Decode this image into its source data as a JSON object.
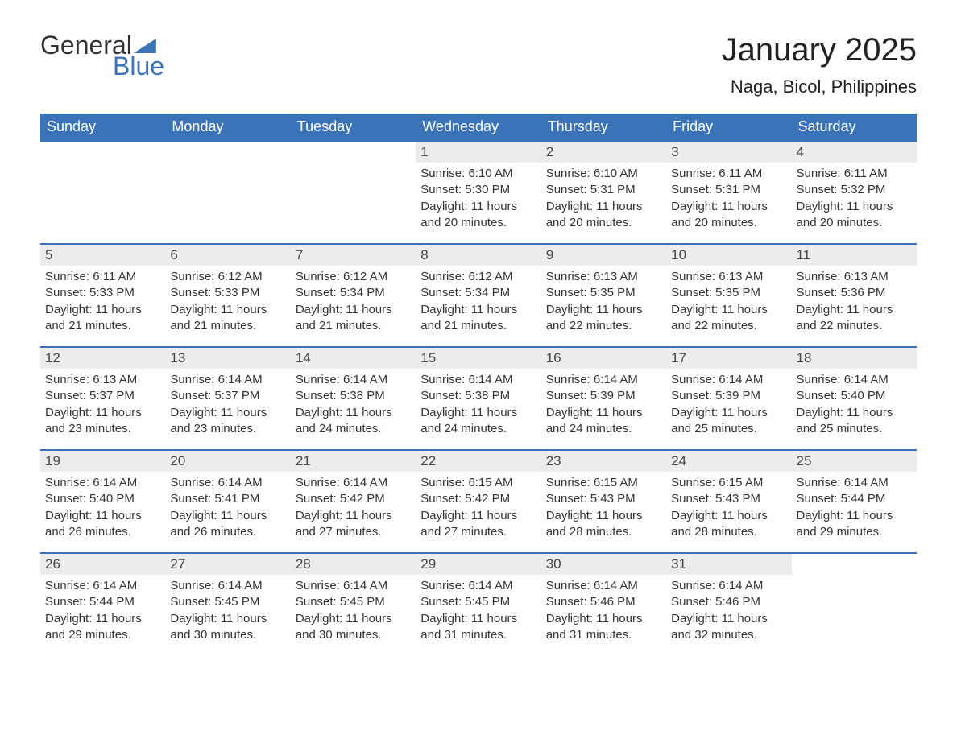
{
  "logo": {
    "text1": "General",
    "text2": "Blue"
  },
  "title": "January 2025",
  "location": "Naga, Bicol, Philippines",
  "colors": {
    "header_bg": "#3b73b9",
    "header_text": "#ffffff",
    "daynum_bg": "#ececec",
    "border": "#3b73b9",
    "body_text": "#333333"
  },
  "weekdays": [
    "Sunday",
    "Monday",
    "Tuesday",
    "Wednesday",
    "Thursday",
    "Friday",
    "Saturday"
  ],
  "weeks": [
    [
      {
        "n": "",
        "sunrise": "",
        "sunset": "",
        "daylight": ""
      },
      {
        "n": "",
        "sunrise": "",
        "sunset": "",
        "daylight": ""
      },
      {
        "n": "",
        "sunrise": "",
        "sunset": "",
        "daylight": ""
      },
      {
        "n": "1",
        "sunrise": "Sunrise: 6:10 AM",
        "sunset": "Sunset: 5:30 PM",
        "daylight": "Daylight: 11 hours and 20 minutes."
      },
      {
        "n": "2",
        "sunrise": "Sunrise: 6:10 AM",
        "sunset": "Sunset: 5:31 PM",
        "daylight": "Daylight: 11 hours and 20 minutes."
      },
      {
        "n": "3",
        "sunrise": "Sunrise: 6:11 AM",
        "sunset": "Sunset: 5:31 PM",
        "daylight": "Daylight: 11 hours and 20 minutes."
      },
      {
        "n": "4",
        "sunrise": "Sunrise: 6:11 AM",
        "sunset": "Sunset: 5:32 PM",
        "daylight": "Daylight: 11 hours and 20 minutes."
      }
    ],
    [
      {
        "n": "5",
        "sunrise": "Sunrise: 6:11 AM",
        "sunset": "Sunset: 5:33 PM",
        "daylight": "Daylight: 11 hours and 21 minutes."
      },
      {
        "n": "6",
        "sunrise": "Sunrise: 6:12 AM",
        "sunset": "Sunset: 5:33 PM",
        "daylight": "Daylight: 11 hours and 21 minutes."
      },
      {
        "n": "7",
        "sunrise": "Sunrise: 6:12 AM",
        "sunset": "Sunset: 5:34 PM",
        "daylight": "Daylight: 11 hours and 21 minutes."
      },
      {
        "n": "8",
        "sunrise": "Sunrise: 6:12 AM",
        "sunset": "Sunset: 5:34 PM",
        "daylight": "Daylight: 11 hours and 21 minutes."
      },
      {
        "n": "9",
        "sunrise": "Sunrise: 6:13 AM",
        "sunset": "Sunset: 5:35 PM",
        "daylight": "Daylight: 11 hours and 22 minutes."
      },
      {
        "n": "10",
        "sunrise": "Sunrise: 6:13 AM",
        "sunset": "Sunset: 5:35 PM",
        "daylight": "Daylight: 11 hours and 22 minutes."
      },
      {
        "n": "11",
        "sunrise": "Sunrise: 6:13 AM",
        "sunset": "Sunset: 5:36 PM",
        "daylight": "Daylight: 11 hours and 22 minutes."
      }
    ],
    [
      {
        "n": "12",
        "sunrise": "Sunrise: 6:13 AM",
        "sunset": "Sunset: 5:37 PM",
        "daylight": "Daylight: 11 hours and 23 minutes."
      },
      {
        "n": "13",
        "sunrise": "Sunrise: 6:14 AM",
        "sunset": "Sunset: 5:37 PM",
        "daylight": "Daylight: 11 hours and 23 minutes."
      },
      {
        "n": "14",
        "sunrise": "Sunrise: 6:14 AM",
        "sunset": "Sunset: 5:38 PM",
        "daylight": "Daylight: 11 hours and 24 minutes."
      },
      {
        "n": "15",
        "sunrise": "Sunrise: 6:14 AM",
        "sunset": "Sunset: 5:38 PM",
        "daylight": "Daylight: 11 hours and 24 minutes."
      },
      {
        "n": "16",
        "sunrise": "Sunrise: 6:14 AM",
        "sunset": "Sunset: 5:39 PM",
        "daylight": "Daylight: 11 hours and 24 minutes."
      },
      {
        "n": "17",
        "sunrise": "Sunrise: 6:14 AM",
        "sunset": "Sunset: 5:39 PM",
        "daylight": "Daylight: 11 hours and 25 minutes."
      },
      {
        "n": "18",
        "sunrise": "Sunrise: 6:14 AM",
        "sunset": "Sunset: 5:40 PM",
        "daylight": "Daylight: 11 hours and 25 minutes."
      }
    ],
    [
      {
        "n": "19",
        "sunrise": "Sunrise: 6:14 AM",
        "sunset": "Sunset: 5:40 PM",
        "daylight": "Daylight: 11 hours and 26 minutes."
      },
      {
        "n": "20",
        "sunrise": "Sunrise: 6:14 AM",
        "sunset": "Sunset: 5:41 PM",
        "daylight": "Daylight: 11 hours and 26 minutes."
      },
      {
        "n": "21",
        "sunrise": "Sunrise: 6:14 AM",
        "sunset": "Sunset: 5:42 PM",
        "daylight": "Daylight: 11 hours and 27 minutes."
      },
      {
        "n": "22",
        "sunrise": "Sunrise: 6:15 AM",
        "sunset": "Sunset: 5:42 PM",
        "daylight": "Daylight: 11 hours and 27 minutes."
      },
      {
        "n": "23",
        "sunrise": "Sunrise: 6:15 AM",
        "sunset": "Sunset: 5:43 PM",
        "daylight": "Daylight: 11 hours and 28 minutes."
      },
      {
        "n": "24",
        "sunrise": "Sunrise: 6:15 AM",
        "sunset": "Sunset: 5:43 PM",
        "daylight": "Daylight: 11 hours and 28 minutes."
      },
      {
        "n": "25",
        "sunrise": "Sunrise: 6:14 AM",
        "sunset": "Sunset: 5:44 PM",
        "daylight": "Daylight: 11 hours and 29 minutes."
      }
    ],
    [
      {
        "n": "26",
        "sunrise": "Sunrise: 6:14 AM",
        "sunset": "Sunset: 5:44 PM",
        "daylight": "Daylight: 11 hours and 29 minutes."
      },
      {
        "n": "27",
        "sunrise": "Sunrise: 6:14 AM",
        "sunset": "Sunset: 5:45 PM",
        "daylight": "Daylight: 11 hours and 30 minutes."
      },
      {
        "n": "28",
        "sunrise": "Sunrise: 6:14 AM",
        "sunset": "Sunset: 5:45 PM",
        "daylight": "Daylight: 11 hours and 30 minutes."
      },
      {
        "n": "29",
        "sunrise": "Sunrise: 6:14 AM",
        "sunset": "Sunset: 5:45 PM",
        "daylight": "Daylight: 11 hours and 31 minutes."
      },
      {
        "n": "30",
        "sunrise": "Sunrise: 6:14 AM",
        "sunset": "Sunset: 5:46 PM",
        "daylight": "Daylight: 11 hours and 31 minutes."
      },
      {
        "n": "31",
        "sunrise": "Sunrise: 6:14 AM",
        "sunset": "Sunset: 5:46 PM",
        "daylight": "Daylight: 11 hours and 32 minutes."
      },
      {
        "n": "",
        "sunrise": "",
        "sunset": "",
        "daylight": ""
      }
    ]
  ]
}
